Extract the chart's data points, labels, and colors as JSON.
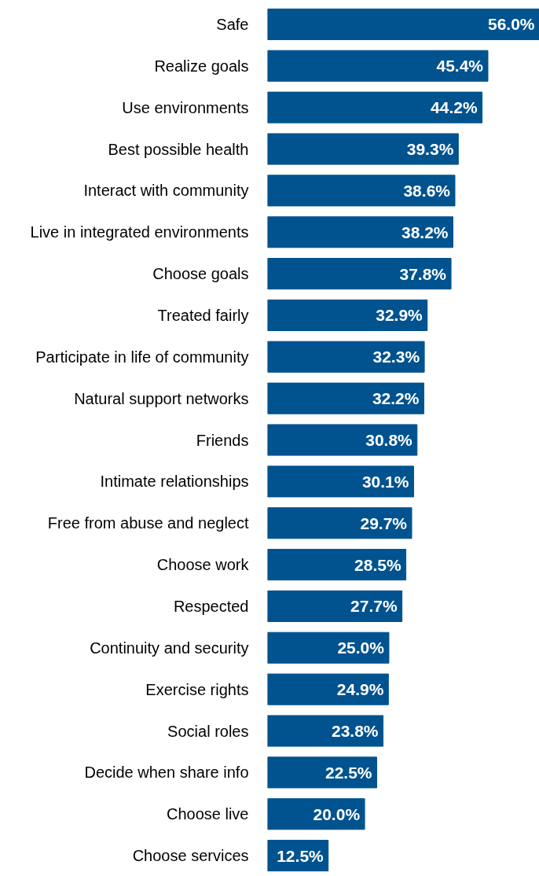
{
  "chart_data": {
    "type": "bar",
    "orientation": "horizontal",
    "categories": [
      "Safe",
      "Realize goals",
      "Use environments",
      "Best possible health",
      "Interact with community",
      "Live in integrated environments",
      "Choose goals",
      "Treated fairly",
      "Participate in life of community",
      "Natural support networks",
      "Friends",
      "Intimate relationships",
      "Free from abuse and neglect",
      "Choose work",
      "Respected",
      "Continuity and security",
      "Exercise rights",
      "Social roles",
      "Decide when share info",
      "Choose live",
      "Choose services"
    ],
    "values": [
      56.0,
      45.4,
      44.2,
      39.3,
      38.6,
      38.2,
      37.8,
      32.9,
      32.3,
      32.2,
      30.8,
      30.1,
      29.7,
      28.5,
      27.7,
      25.0,
      24.9,
      23.8,
      22.5,
      20.0,
      12.5
    ],
    "value_labels": [
      "56.0%",
      "45.4%",
      "44.2%",
      "39.3%",
      "38.6%",
      "38.2%",
      "37.8%",
      "32.9%",
      "32.3%",
      "32.2%",
      "30.8%",
      "30.1%",
      "29.7%",
      "28.5%",
      "27.7%",
      "25.0%",
      "24.9%",
      "23.8%",
      "22.5%",
      "20.0%",
      "12.5%"
    ],
    "color": "#00538f",
    "xlim": [
      0,
      56
    ],
    "tick_labels": "y"
  }
}
